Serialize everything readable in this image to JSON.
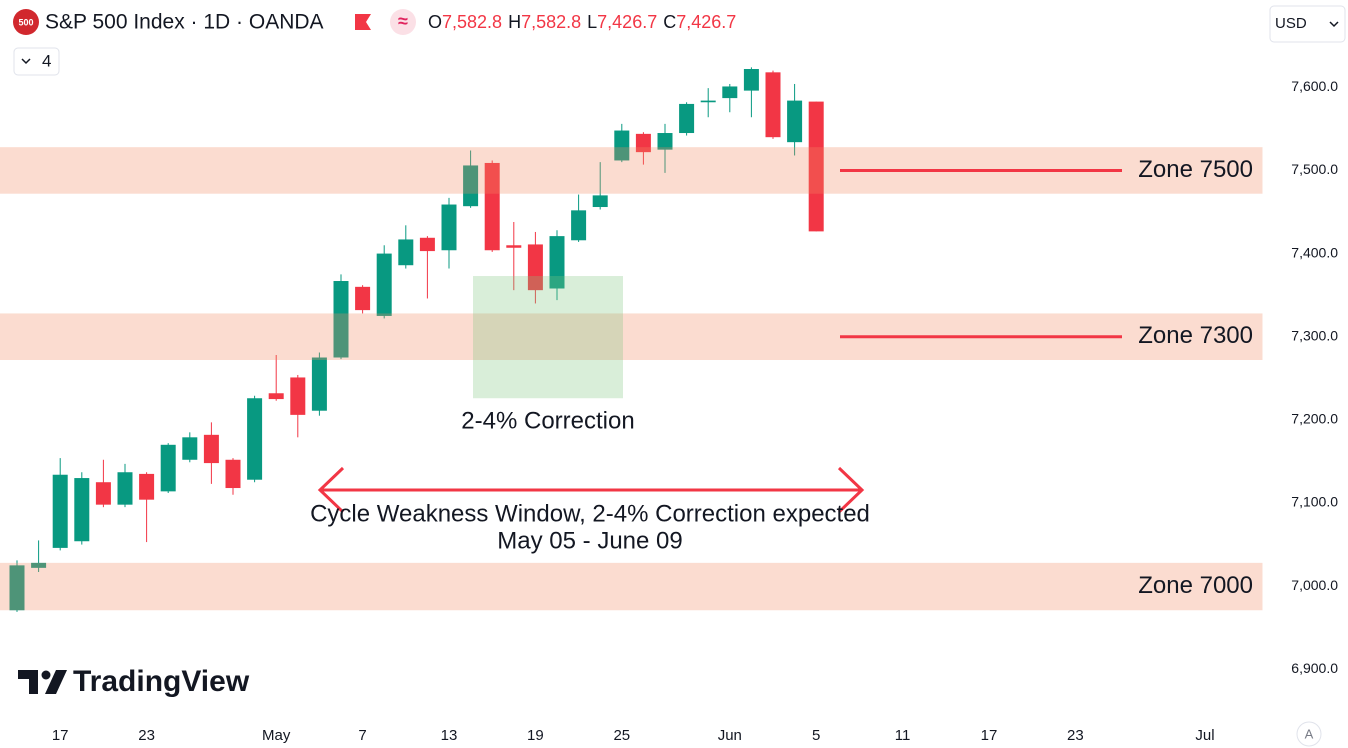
{
  "header": {
    "badge": "500",
    "title": "S&P 500 Index · 1D · OANDA",
    "ohlc": [
      {
        "key": "O",
        "value": "7,582.8"
      },
      {
        "key": "H",
        "value": "7,582.8"
      },
      {
        "key": "L",
        "value": "7,426.7"
      },
      {
        "key": "C",
        "value": "7,426.7"
      }
    ],
    "indicators": 4,
    "currency": "USD",
    "logo": "TradingView",
    "auto_button": "A"
  },
  "chart_data": {
    "type": "candlestick",
    "up_color": "#089981",
    "down_color": "#f23645",
    "grid": false,
    "categories": [
      null,
      null,
      "17",
      null,
      null,
      null,
      "23",
      null,
      null,
      null,
      null,
      null,
      "May",
      null,
      null,
      null,
      "7",
      null,
      null,
      null,
      "13",
      null,
      null,
      null,
      "19",
      null,
      null,
      null,
      "25",
      null,
      null,
      null,
      null,
      "Jun",
      null,
      null,
      null,
      "5",
      null,
      null,
      null,
      "11",
      null,
      null,
      null,
      "17",
      null,
      null,
      null,
      "23",
      null,
      null,
      null,
      null,
      null,
      "Jul",
      null,
      null
    ],
    "open": [
      6971,
      7022,
      7046,
      7054,
      7125,
      7098,
      7135,
      7114,
      7152,
      7182,
      7152,
      7128,
      7232,
      7251,
      7211,
      7275,
      7360,
      7325,
      7386,
      7419,
      7404,
      7457,
      7509,
      7410,
      7411,
      7358,
      7416,
      7456,
      7512,
      7544,
      7525,
      7545,
      7582,
      7587,
      7596,
      7618,
      7534,
      7582.8,
      null,
      null,
      null,
      null,
      null,
      null,
      null,
      null,
      null,
      null,
      null,
      null,
      null,
      null,
      null,
      null,
      null,
      null,
      null,
      null
    ],
    "high": [
      7031,
      7055,
      7154,
      7137,
      7152,
      7147,
      7137,
      7172,
      7185,
      7197,
      7154,
      7229,
      7278,
      7254,
      7281,
      7375,
      7362,
      7410,
      7434,
      7421,
      7467,
      7524,
      7512,
      7438,
      7426,
      7428,
      7471,
      7510,
      7556,
      7546,
      7556,
      7582,
      7599,
      7604,
      7624,
      7620,
      7604,
      7582.8,
      null,
      null,
      null,
      null,
      null,
      null,
      null,
      null,
      null,
      null,
      null,
      null,
      null,
      null,
      null,
      null,
      null,
      null,
      null,
      null
    ],
    "low": [
      6969,
      7017,
      7043,
      7050,
      7095,
      7095,
      7053,
      7112,
      7149,
      7123,
      7110,
      7125,
      7223,
      7179,
      7205,
      7273,
      7328,
      7322,
      7382,
      7346,
      7382,
      7455,
      7402,
      7356,
      7340,
      7344,
      7414,
      7453,
      7510,
      7507,
      7497,
      7542,
      7564,
      7570,
      7564,
      7538,
      7518,
      7426.7,
      null,
      null,
      null,
      null,
      null,
      null,
      null,
      null,
      null,
      null,
      null,
      null,
      null,
      null,
      null,
      null,
      null,
      null,
      null,
      null
    ],
    "close": [
      7025,
      7028,
      7134,
      7130,
      7098,
      7137,
      7104,
      7170,
      7179,
      7148,
      7118,
      7226,
      7225,
      7206,
      7275,
      7367,
      7332,
      7400,
      7417,
      7403,
      7459,
      7506,
      7404,
      7407,
      7356,
      7421,
      7452,
      7470,
      7548,
      7522,
      7545,
      7580,
      7584,
      7601,
      7622,
      7540,
      7584,
      7426.7,
      null,
      null,
      null,
      null,
      null,
      null,
      null,
      null,
      null,
      null,
      null,
      null,
      null,
      null,
      null,
      null,
      null,
      null,
      null,
      null
    ],
    "ylim": [
      6839,
      7705
    ],
    "yticks": [
      {
        "value": 6900,
        "label": "6,900.0"
      },
      {
        "value": 7000,
        "label": "7,000.0"
      },
      {
        "value": 7100,
        "label": "7,100.0"
      },
      {
        "value": 7200,
        "label": "7,200.0"
      },
      {
        "value": 7300,
        "label": "7,300.0"
      },
      {
        "value": 7400,
        "label": "7,400.0"
      },
      {
        "value": 7500,
        "label": "7,500.0"
      },
      {
        "value": 7600,
        "label": "7,600.0"
      }
    ],
    "zones": [
      {
        "label": "Zone 7500",
        "range": [
          7472,
          7528
        ],
        "line": 7500
      },
      {
        "label": "Zone 7300",
        "range": [
          7272,
          7328
        ],
        "line": 7300
      },
      {
        "label": "Zone 7000",
        "range": [
          6971,
          7028
        ]
      }
    ],
    "correction_box": {
      "label": "2-4% Correction",
      "range": [
        7226,
        7373
      ]
    },
    "window": {
      "label": "Cycle Weakness Window, 2-4% Correction expected",
      "dates": "May 05 - June 09"
    }
  }
}
